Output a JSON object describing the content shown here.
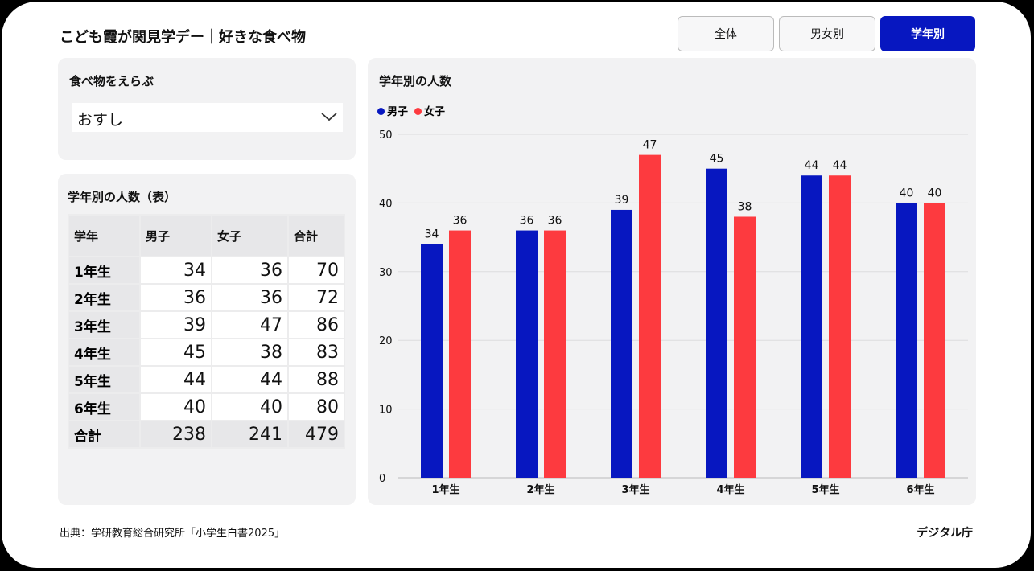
{
  "header": {
    "title": "こども霞が関見学デー｜好きな食べ物"
  },
  "view_tabs": [
    {
      "label": "全体",
      "active": false
    },
    {
      "label": "男女別",
      "active": false
    },
    {
      "label": "学年別",
      "active": true
    }
  ],
  "food_select": {
    "heading": "食べ物をえらぶ",
    "value": "おすし"
  },
  "table": {
    "heading": "学年別の人数（表）",
    "columns": [
      "学年",
      "男子",
      "女子",
      "合計"
    ],
    "rows": [
      [
        "1年生",
        "34",
        "36",
        "70"
      ],
      [
        "2年生",
        "36",
        "36",
        "72"
      ],
      [
        "3年生",
        "39",
        "47",
        "86"
      ],
      [
        "4年生",
        "45",
        "38",
        "83"
      ],
      [
        "5年生",
        "44",
        "44",
        "88"
      ],
      [
        "6年生",
        "40",
        "40",
        "80"
      ],
      [
        "合計",
        "238",
        "241",
        "479"
      ]
    ]
  },
  "chart_data": {
    "type": "bar",
    "title": "学年別の人数",
    "categories": [
      "1年生",
      "2年生",
      "3年生",
      "4年生",
      "5年生",
      "6年生"
    ],
    "series": [
      {
        "name": "男子",
        "color": "#0717c0",
        "values": [
          34,
          36,
          39,
          45,
          44,
          40
        ]
      },
      {
        "name": "女子",
        "color": "#fd3a3f",
        "values": [
          36,
          36,
          47,
          38,
          44,
          40
        ]
      }
    ],
    "ylim": [
      0,
      50
    ],
    "yticks": [
      0,
      10,
      20,
      30,
      40,
      50
    ],
    "grid": true,
    "legend_position": "top-left"
  },
  "footer": {
    "source": "出典：学研教育総合研究所「小学生白書2025」",
    "brand": "デジタル庁"
  }
}
